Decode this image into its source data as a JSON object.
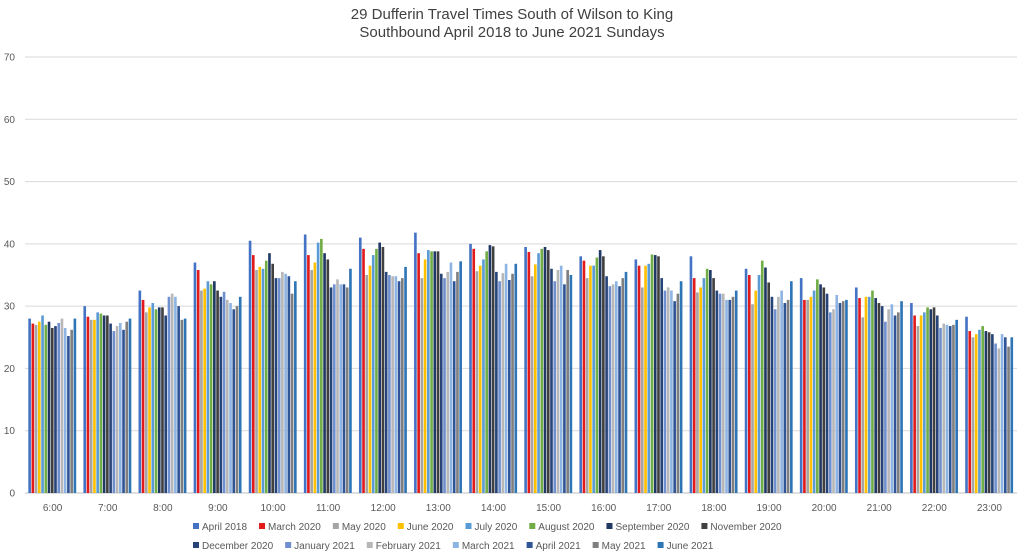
{
  "chart_data": {
    "type": "bar",
    "title": "29 Dufferin Travel Times South of Wilson to King",
    "subtitle": "Southbound April 2018 to June 2021 Sundays",
    "xlabel": "",
    "ylabel": "",
    "ylim": [
      0,
      70
    ],
    "yticks": [
      0,
      10,
      20,
      30,
      40,
      50,
      60,
      70
    ],
    "grid": true,
    "legend_position": "bottom",
    "categories": [
      "6:00",
      "7:00",
      "8:00",
      "9:00",
      "10:00",
      "11:00",
      "12:00",
      "13:00",
      "14:00",
      "15:00",
      "16:00",
      "17:00",
      "18:00",
      "19:00",
      "20:00",
      "21:00",
      "22:00",
      "23:00"
    ],
    "series": [
      {
        "name": "April 2018",
        "color": "#4472C4",
        "values": [
          28.0,
          30.0,
          32.5,
          37.0,
          40.5,
          41.5,
          41.0,
          41.8,
          40.0,
          39.5,
          38.0,
          37.5,
          38.0,
          36.0,
          34.5,
          33.0,
          30.5,
          28.3
        ]
      },
      {
        "name": "March 2020",
        "color": "#E31A1C",
        "values": [
          27.2,
          28.3,
          31.0,
          35.8,
          38.2,
          38.2,
          39.2,
          38.5,
          39.2,
          38.7,
          37.3,
          36.5,
          34.5,
          35.0,
          31.0,
          31.3,
          28.5,
          26.0
        ]
      },
      {
        "name": "May 2020",
        "color": "#A5A5A5",
        "values": [
          27.0,
          27.8,
          29.0,
          32.5,
          35.8,
          35.8,
          35.0,
          34.5,
          35.6,
          34.8,
          34.5,
          33.0,
          32.2,
          30.3,
          31.0,
          28.2,
          26.8,
          25.0
        ]
      },
      {
        "name": "June 2020",
        "color": "#FFC000",
        "values": [
          27.5,
          27.8,
          29.8,
          32.8,
          36.3,
          37.0,
          36.5,
          37.5,
          36.5,
          36.7,
          36.5,
          36.5,
          33.0,
          32.5,
          31.5,
          31.5,
          28.5,
          25.5
        ]
      },
      {
        "name": "July 2020",
        "color": "#5B9BD5",
        "values": [
          28.5,
          29.0,
          30.5,
          34.0,
          36.0,
          40.2,
          38.2,
          39.0,
          37.5,
          38.5,
          36.5,
          36.8,
          34.5,
          35.0,
          32.5,
          31.5,
          29.0,
          26.2
        ]
      },
      {
        "name": "August 2020",
        "color": "#70AD47",
        "values": [
          27.0,
          28.8,
          29.5,
          33.5,
          37.3,
          40.8,
          39.2,
          38.8,
          38.8,
          39.2,
          37.8,
          38.3,
          36.0,
          37.3,
          34.3,
          32.5,
          29.8,
          26.8
        ]
      },
      {
        "name": "September 2020",
        "color": "#1F3864",
        "values": [
          27.5,
          28.5,
          29.8,
          34.0,
          38.5,
          38.5,
          40.2,
          38.8,
          39.8,
          39.5,
          39.0,
          38.2,
          35.8,
          36.2,
          33.5,
          31.3,
          29.5,
          26.0
        ]
      },
      {
        "name": "November 2020",
        "color": "#404040",
        "values": [
          26.5,
          28.5,
          29.8,
          32.5,
          36.8,
          37.5,
          39.5,
          38.8,
          39.6,
          39.0,
          38.0,
          38.0,
          34.5,
          33.8,
          33.0,
          30.5,
          29.8,
          25.8
        ]
      },
      {
        "name": "December 2020",
        "color": "#264478",
        "values": [
          26.8,
          27.2,
          28.5,
          31.5,
          34.5,
          33.0,
          35.5,
          35.2,
          35.5,
          36.0,
          34.8,
          34.5,
          32.5,
          31.5,
          32.0,
          30.0,
          28.5,
          25.5
        ]
      },
      {
        "name": "January 2021",
        "color": "#6F8FCF",
        "values": [
          27.3,
          26.0,
          31.5,
          32.3,
          34.5,
          33.5,
          35.0,
          34.5,
          34.0,
          34.0,
          33.2,
          32.5,
          32.0,
          29.5,
          29.0,
          27.5,
          26.5,
          24.0
        ]
      },
      {
        "name": "February 2021",
        "color": "#B7B7B7",
        "values": [
          28.0,
          26.8,
          32.0,
          31.0,
          35.5,
          34.3,
          34.8,
          35.5,
          35.3,
          35.8,
          33.5,
          33.0,
          32.0,
          31.5,
          29.5,
          29.5,
          27.2,
          23.2
        ]
      },
      {
        "name": "March 2021",
        "color": "#8DB4E2",
        "values": [
          26.5,
          27.3,
          31.5,
          30.5,
          35.2,
          33.5,
          34.8,
          37.0,
          36.8,
          36.5,
          34.0,
          32.5,
          31.0,
          32.5,
          31.8,
          30.3,
          27.0,
          25.5
        ]
      },
      {
        "name": "April 2021",
        "color": "#2F5597",
        "values": [
          25.2,
          26.2,
          30.0,
          29.5,
          34.8,
          33.5,
          34.0,
          34.0,
          34.2,
          33.5,
          33.2,
          30.8,
          31.0,
          30.5,
          30.5,
          28.5,
          26.8,
          25.0
        ]
      },
      {
        "name": "May 2021",
        "color": "#7F7F7F",
        "values": [
          26.2,
          27.5,
          27.8,
          30.0,
          32.0,
          33.0,
          34.5,
          35.5,
          35.2,
          35.8,
          34.5,
          32.0,
          31.5,
          31.0,
          30.8,
          29.0,
          27.0,
          23.5
        ]
      },
      {
        "name": "June 2021",
        "color": "#2E75B6",
        "values": [
          28.0,
          28.0,
          28.0,
          31.5,
          34.0,
          36.0,
          36.3,
          37.2,
          36.8,
          35.0,
          35.5,
          34.0,
          32.5,
          34.0,
          31.0,
          30.8,
          27.8,
          25.0
        ]
      }
    ]
  }
}
